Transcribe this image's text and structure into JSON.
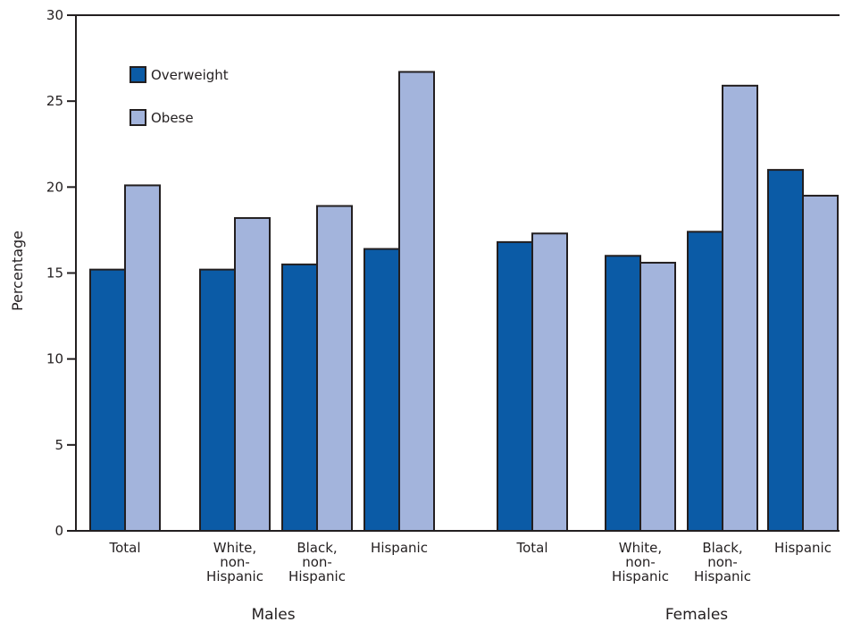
{
  "chart_data": {
    "type": "bar",
    "title": "",
    "xlabel": "",
    "ylabel": "Percentage",
    "ylim": [
      0,
      30
    ],
    "yticks": [
      0,
      5,
      10,
      15,
      20,
      25,
      30
    ],
    "grid": false,
    "legend": "top-left",
    "groups": [
      {
        "name": "Males",
        "categories": [
          "Total",
          "White,\nnon-\nHispanic",
          "Black,\nnon-\nHispanic",
          "Hispanic"
        ]
      },
      {
        "name": "Females",
        "categories": [
          "Total",
          "White,\nnon-\nHispanic",
          "Black,\nnon-\nHispanic",
          "Hispanic"
        ]
      }
    ],
    "categories": [
      "Males - Total",
      "Males - White, non-Hispanic",
      "Males - Black, non-Hispanic",
      "Males - Hispanic",
      "Females - Total",
      "Females - White, non-Hispanic",
      "Females - Black, non-Hispanic",
      "Females - Hispanic"
    ],
    "series": [
      {
        "name": "Overweight",
        "color": "#0b5ba6",
        "values": [
          15.2,
          15.2,
          15.5,
          16.4,
          16.8,
          16.0,
          17.4,
          21.0
        ]
      },
      {
        "name": "Obese",
        "color": "#a3b4dc",
        "values": [
          20.1,
          18.2,
          18.9,
          26.7,
          17.3,
          15.6,
          25.9,
          19.5
        ]
      }
    ]
  }
}
